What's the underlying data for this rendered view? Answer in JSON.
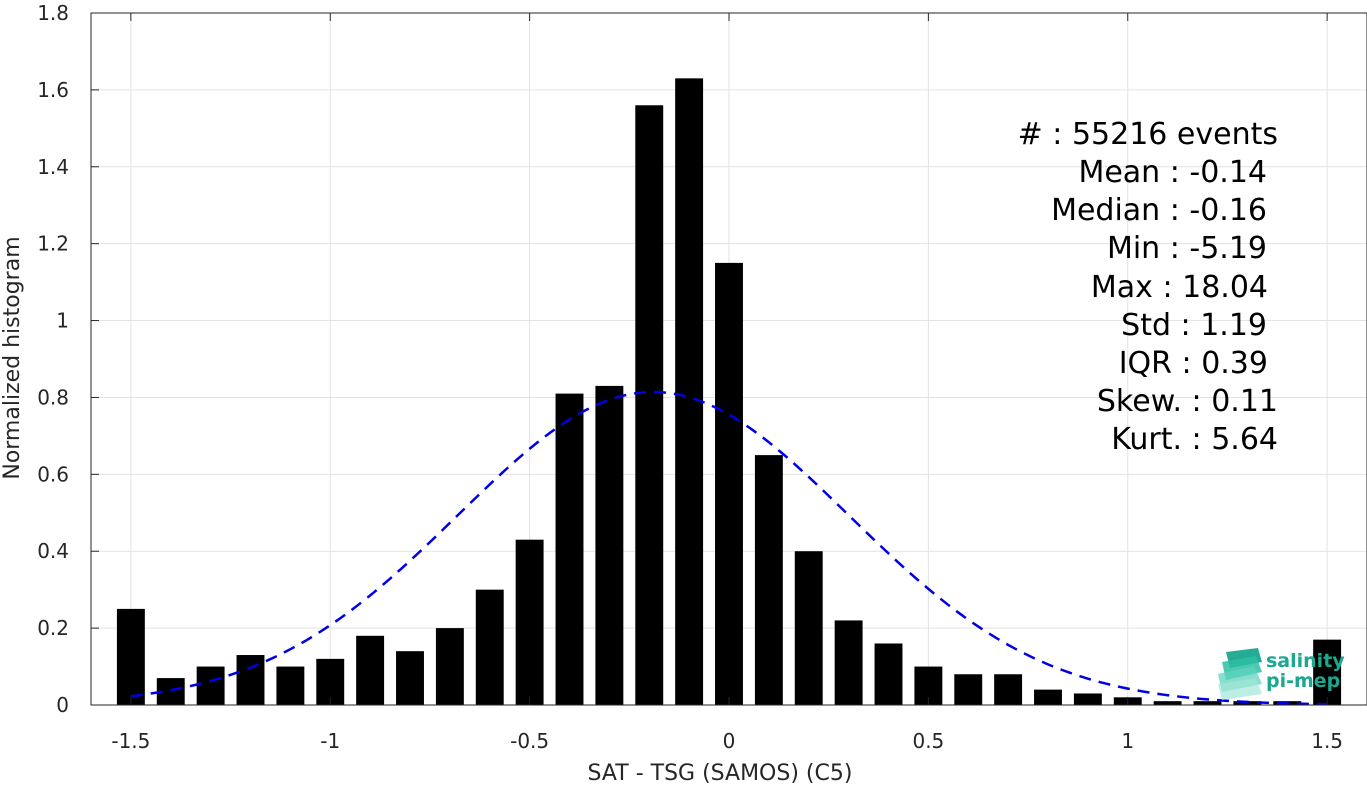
{
  "chart_data": {
    "type": "bar",
    "xlabel": "SAT - TSG (SAMOS) (C5)",
    "ylabel": "Normalized histogram",
    "xlim": [
      -1.6,
      1.6
    ],
    "ylim": [
      0,
      1.8
    ],
    "xticks": [
      -1.5,
      -1,
      -0.5,
      0,
      0.5,
      1,
      1.5
    ],
    "xtick_labels": [
      "-1.5",
      "-1",
      "-0.5",
      "0",
      "0.5",
      "1",
      "1.5"
    ],
    "yticks": [
      0,
      0.2,
      0.4,
      0.6,
      0.8,
      1,
      1.2,
      1.4,
      1.6,
      1.8
    ],
    "ytick_labels": [
      "0",
      "0.2",
      "0.4",
      "0.6",
      "0.8",
      "1",
      "1.2",
      "1.4",
      "1.6",
      "1.8"
    ],
    "grid": true,
    "bar_color": "#000000",
    "bin_width": 0.1,
    "bar_fraction": 0.7,
    "x": [
      -1.5,
      -1.4,
      -1.3,
      -1.2,
      -1.1,
      -1.0,
      -0.9,
      -0.8,
      -0.7,
      -0.6,
      -0.5,
      -0.4,
      -0.3,
      -0.2,
      -0.1,
      0.0,
      0.1,
      0.2,
      0.3,
      0.4,
      0.5,
      0.6,
      0.7,
      0.8,
      0.9,
      1.0,
      1.1,
      1.2,
      1.3,
      1.4,
      1.5
    ],
    "values": [
      0.25,
      0.07,
      0.1,
      0.13,
      0.1,
      0.12,
      0.18,
      0.14,
      0.2,
      0.3,
      0.43,
      0.81,
      0.83,
      1.56,
      1.63,
      1.15,
      0.65,
      0.4,
      0.22,
      0.16,
      0.1,
      0.08,
      0.08,
      0.04,
      0.03,
      0.02,
      0.01,
      0.01,
      0.01,
      0.01,
      0.17
    ],
    "fit": {
      "type": "gaussian",
      "mean": -0.19,
      "std": 0.49,
      "x_range": [
        -1.5,
        1.5
      ],
      "color": "#0000e6",
      "style": "dashed"
    },
    "annotation_lines": [
      "#  : 55216 events",
      "Mean : -0.14",
      "Median : -0.16",
      "Min : -5.19",
      "Max : 18.04",
      "Std : 1.19",
      "IQR : 0.39",
      "Skew. : 0.11",
      "Kurt. : 5.64"
    ],
    "annotation_placement": "top-right"
  },
  "logo": {
    "line1": "salinity",
    "line2": "pi-mep",
    "color": "#1aa88f"
  }
}
